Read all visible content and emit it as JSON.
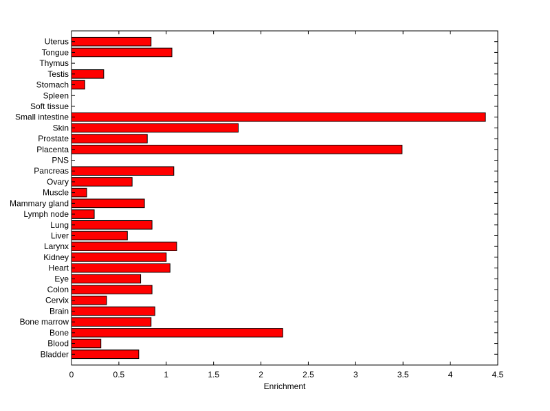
{
  "chart_data": {
    "type": "bar",
    "orientation": "horizontal",
    "title": "",
    "xlabel": "Enrichment",
    "ylabel": "",
    "xlim": [
      0,
      4.5
    ],
    "xticks": [
      0,
      0.5,
      1,
      1.5,
      2,
      2.5,
      3,
      3.5,
      4,
      4.5
    ],
    "xtick_labels": [
      "0",
      "0.5",
      "1",
      "1.5",
      "2",
      "2.5",
      "3",
      "3.5",
      "4",
      "4.5"
    ],
    "grid": false,
    "legend": "none",
    "bar_color": "#ff0000",
    "categories": [
      "Bladder",
      "Blood",
      "Bone",
      "Bone marrow",
      "Brain",
      "Cervix",
      "Colon",
      "Eye",
      "Heart",
      "Kidney",
      "Larynx",
      "Liver",
      "Lung",
      "Lymph node",
      "Mammary gland",
      "Muscle",
      "Ovary",
      "Pancreas",
      "PNS",
      "Placenta",
      "Prostate",
      "Skin",
      "Small intestine",
      "Soft tissue",
      "Spleen",
      "Stomach",
      "Testis",
      "Thymus",
      "Tongue",
      "Uterus"
    ],
    "values": [
      0.71,
      0.31,
      2.23,
      0.84,
      0.88,
      0.37,
      0.85,
      0.73,
      1.04,
      1.0,
      1.11,
      0.59,
      0.85,
      0.24,
      0.77,
      0.16,
      0.64,
      1.08,
      0,
      3.49,
      0.8,
      1.76,
      4.37,
      0,
      0,
      0.14,
      0.34,
      0,
      1.06,
      0.84
    ]
  }
}
